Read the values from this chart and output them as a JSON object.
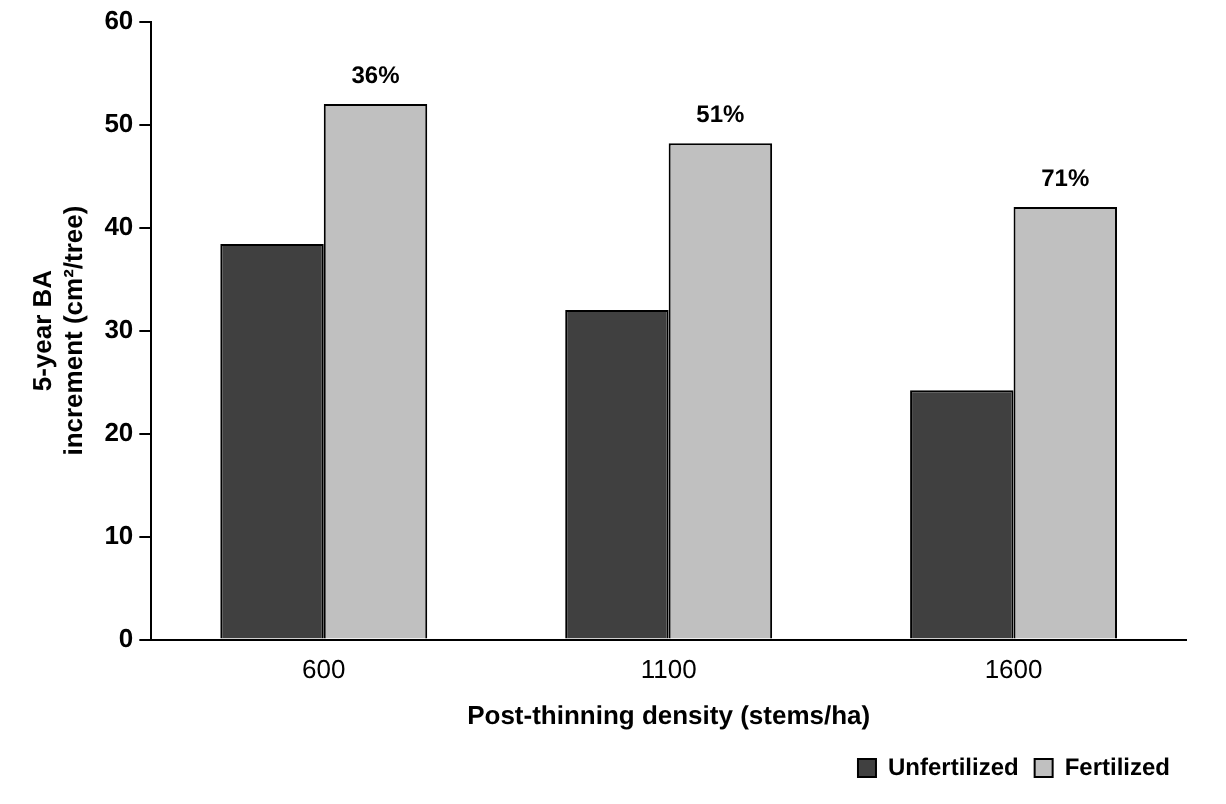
{
  "chart_data": {
    "type": "bar",
    "xlabel": "Post-thinning density (stems/ha)",
    "ylabel": "5-year BA increment (cm²/tree)",
    "categories": [
      "600",
      "1100",
      "1600"
    ],
    "series": [
      {
        "name": "Unfertilized",
        "color": "#404040",
        "values": [
          38.4,
          32,
          24.2
        ]
      },
      {
        "name": "Fertilized",
        "color": "#c0c0c0",
        "values": [
          52,
          48.2,
          42
        ]
      }
    ],
    "ylim": [
      0,
      60
    ],
    "yticks": [
      0,
      10,
      20,
      30,
      40,
      50,
      60
    ],
    "grid": false,
    "legend": "bottom right",
    "annotations": [
      {
        "text": "36%",
        "x": "600",
        "y": 52
      },
      {
        "text": "51%",
        "x": "1100",
        "y": 48.2
      },
      {
        "text": "71%",
        "x": "1600",
        "y": 42
      }
    ]
  }
}
